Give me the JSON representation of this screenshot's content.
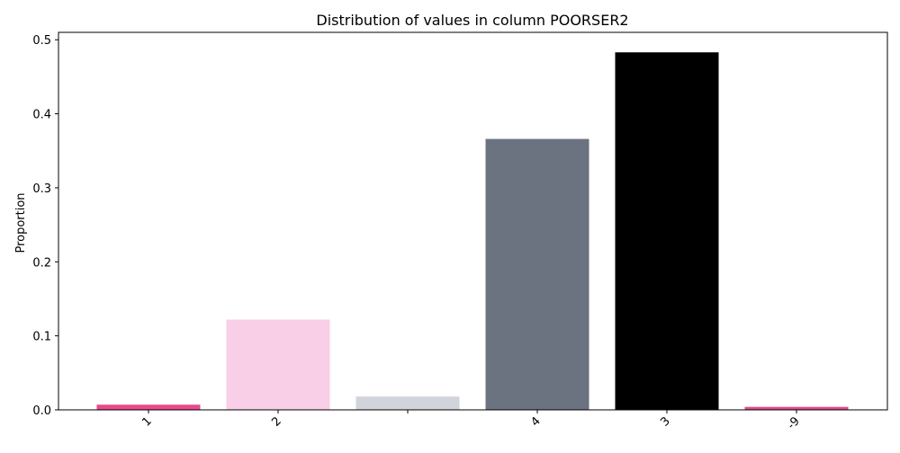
{
  "chart_data": {
    "type": "bar",
    "title": "Distribution of values in column POORSER2",
    "xlabel": "",
    "ylabel": "Proportion",
    "categories": [
      "1",
      "2",
      "",
      "4",
      "3",
      "-9"
    ],
    "values": [
      0.007,
      0.122,
      0.018,
      0.366,
      0.483,
      0.004
    ],
    "colors": [
      "#e84a8b",
      "#f9cfe7",
      "#d1d5db",
      "#6b7280",
      "#000000",
      "#de4a8b"
    ],
    "ylim": [
      0,
      0.51
    ],
    "yticks": [
      0.0,
      0.1,
      0.2,
      0.3,
      0.4,
      0.5
    ],
    "ytick_labels": [
      "0.0",
      "0.1",
      "0.2",
      "0.3",
      "0.4",
      "0.5"
    ],
    "grid": false,
    "legend": "none"
  }
}
